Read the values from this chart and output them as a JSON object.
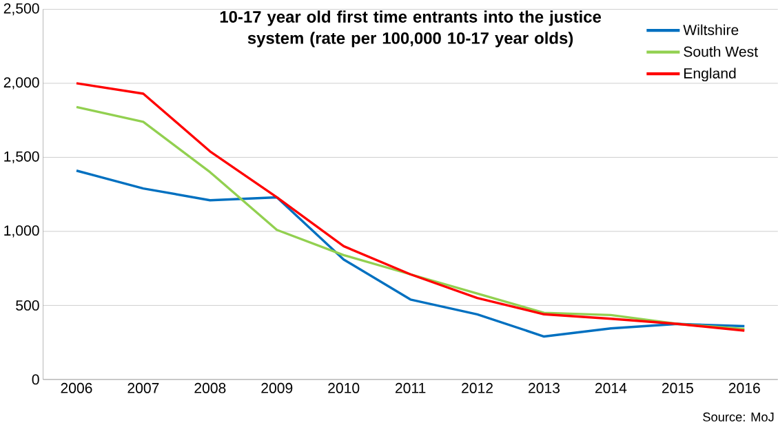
{
  "chart_data": {
    "type": "line",
    "title": "10-17 year old first time entrants into the justice system (rate per 100,000 10-17 year olds)",
    "categories": [
      "2006",
      "2007",
      "2008",
      "2009",
      "2010",
      "2011",
      "2012",
      "2013",
      "2014",
      "2015",
      "2016"
    ],
    "series": [
      {
        "name": "Wiltshire",
        "color": "#0070c0",
        "values": [
          1410,
          1290,
          1210,
          1230,
          810,
          540,
          440,
          290,
          345,
          375,
          360
        ]
      },
      {
        "name": "South West",
        "color": "#92d050",
        "values": [
          1840,
          1740,
          1400,
          1010,
          840,
          710,
          580,
          450,
          435,
          375,
          340
        ]
      },
      {
        "name": "England",
        "color": "#ff0000",
        "values": [
          2000,
          1930,
          1540,
          1230,
          900,
          710,
          550,
          440,
          410,
          375,
          330
        ]
      }
    ],
    "ylim": [
      0,
      2500
    ],
    "yticks": [
      {
        "value": 0,
        "label": "0"
      },
      {
        "value": 500,
        "label": "500"
      },
      {
        "value": 1000,
        "label": "1,000"
      },
      {
        "value": 1500,
        "label": "1,500"
      },
      {
        "value": 2000,
        "label": "2,000"
      },
      {
        "value": 2500,
        "label": "2,500"
      }
    ],
    "grid": "y",
    "legend": "top right",
    "marker": "none",
    "line_style": "solid",
    "annotations": [
      "Source: MoJ"
    ]
  }
}
